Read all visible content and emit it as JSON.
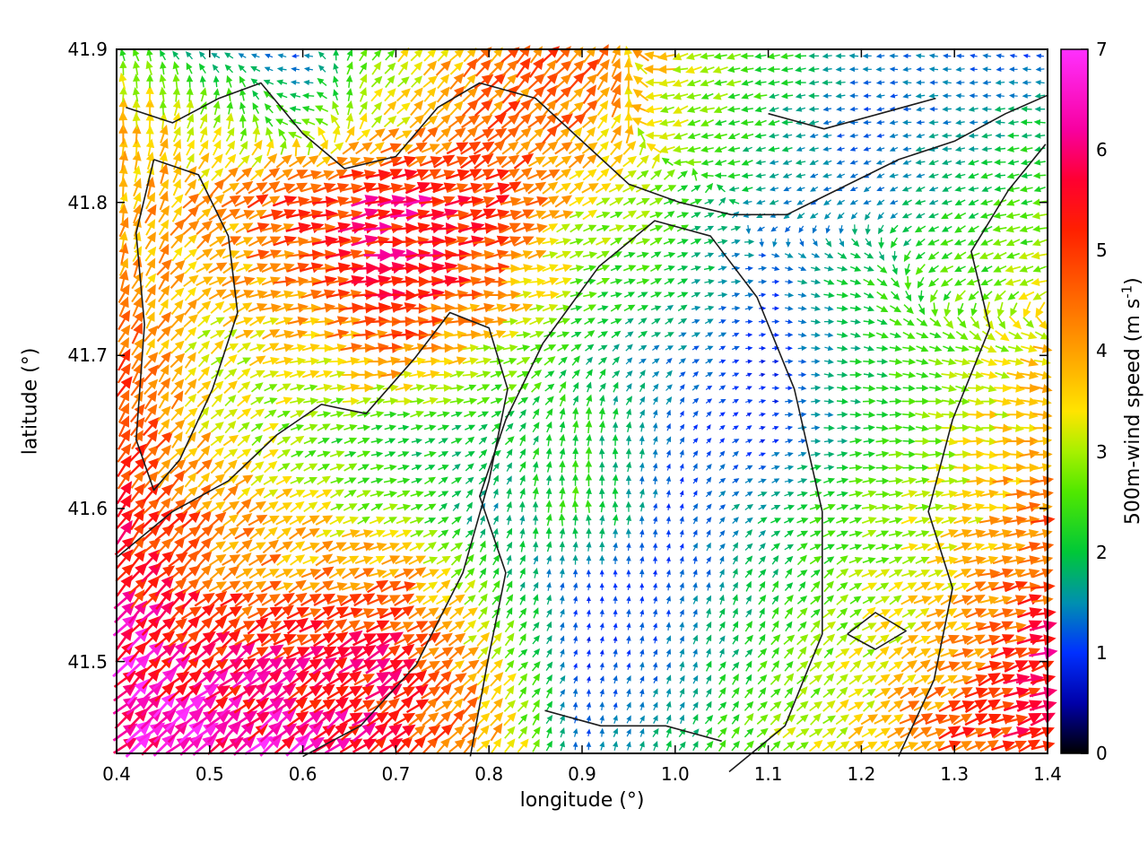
{
  "chart_data": {
    "type": "quiver",
    "title": "",
    "xlabel": "longitude (°)",
    "ylabel": "latitude (°)",
    "xlim": [
      0.4,
      1.4
    ],
    "ylim": [
      41.44,
      41.9
    ],
    "x_ticks": [
      0.4,
      0.5,
      0.6,
      0.7,
      0.8,
      0.9,
      1.0,
      1.1,
      1.2,
      1.3,
      1.4
    ],
    "x_tick_labels": [
      "0.4",
      "0.5",
      "0.6",
      "0.7",
      "0.8",
      "0.9",
      "1.0",
      "1.1",
      "1.2",
      "1.3",
      "1.4"
    ],
    "y_ticks": [
      41.5,
      41.6,
      41.7,
      41.8,
      41.9
    ],
    "y_tick_labels": [
      "41.5",
      "41.6",
      "41.7",
      "41.8",
      "41.9"
    ],
    "grid": false,
    "legend": "none",
    "colorbar": {
      "label": "500m-wind speed (m s^-1)",
      "label_main": "500m-wind speed (m s",
      "label_sup": "-1",
      "label_close": ")",
      "range": [
        0,
        7
      ],
      "ticks": [
        0,
        1,
        2,
        3,
        4,
        5,
        6,
        7
      ],
      "tick_labels": [
        "0",
        "1",
        "2",
        "3",
        "4",
        "5",
        "6",
        "7"
      ],
      "position": "right"
    },
    "colormap": [
      {
        "v": 0,
        "c": "#000000"
      },
      {
        "v": 0.5,
        "c": "#0000a8"
      },
      {
        "v": 1.0,
        "c": "#0030ff"
      },
      {
        "v": 1.5,
        "c": "#0090b0"
      },
      {
        "v": 2.0,
        "c": "#00c838"
      },
      {
        "v": 2.6,
        "c": "#50e800"
      },
      {
        "v": 3.0,
        "c": "#a8f000"
      },
      {
        "v": 3.4,
        "c": "#ffe400"
      },
      {
        "v": 4.0,
        "c": "#ffa000"
      },
      {
        "v": 4.6,
        "c": "#ff6000"
      },
      {
        "v": 5.2,
        "c": "#ff2000"
      },
      {
        "v": 5.7,
        "c": "#ff0030"
      },
      {
        "v": 6.2,
        "c": "#f800a0"
      },
      {
        "v": 7,
        "c": "#ff30ff"
      }
    ],
    "grid_lons": [
      0.4,
      0.5,
      0.6,
      0.7,
      0.8,
      0.9,
      1.0,
      1.1,
      1.2,
      1.3,
      1.4
    ],
    "grid_lats": [
      41.45,
      41.5,
      41.55,
      41.6,
      41.65,
      41.7,
      41.75,
      41.8,
      41.85,
      41.9
    ],
    "speed_m_s": [
      [
        6.9,
        6.4,
        6.0,
        5.2,
        4.0,
        1.2,
        1.8,
        2.8,
        3.5,
        4.8,
        5.4
      ],
      [
        6.4,
        5.6,
        5.6,
        5.4,
        3.4,
        0.9,
        1.4,
        2.4,
        3.2,
        4.2,
        5.6
      ],
      [
        5.6,
        4.6,
        4.2,
        4.6,
        2.4,
        1.0,
        1.1,
        2.0,
        2.9,
        3.6,
        5.0
      ],
      [
        5.2,
        4.2,
        3.4,
        2.6,
        1.5,
        2.4,
        1.0,
        1.8,
        2.6,
        3.3,
        4.6
      ],
      [
        5.0,
        3.6,
        2.6,
        2.0,
        2.0,
        2.2,
        1.2,
        0.9,
        2.1,
        3.0,
        4.0
      ],
      [
        4.6,
        3.2,
        3.4,
        4.4,
        3.0,
        2.0,
        1.4,
        0.9,
        2.0,
        2.8,
        3.6
      ],
      [
        4.2,
        3.6,
        4.6,
        5.6,
        4.6,
        2.6,
        2.0,
        1.1,
        2.2,
        2.5,
        3.0
      ],
      [
        3.8,
        4.0,
        5.0,
        5.8,
        5.0,
        3.4,
        2.4,
        1.5,
        1.3,
        2.0,
        2.6
      ],
      [
        4.0,
        3.0,
        2.4,
        3.6,
        4.6,
        4.2,
        3.0,
        2.0,
        1.1,
        1.5,
        2.0
      ],
      [
        2.6,
        1.6,
        1.1,
        3.0,
        4.4,
        4.6,
        3.4,
        2.4,
        1.5,
        1.2,
        1.1
      ]
    ],
    "direction_deg": [
      [
        42,
        40,
        36,
        38,
        50,
        85,
        60,
        45,
        35,
        25,
        20
      ],
      [
        45,
        38,
        32,
        32,
        45,
        80,
        70,
        52,
        40,
        26,
        16
      ],
      [
        48,
        38,
        26,
        22,
        60,
        88,
        80,
        60,
        32,
        22,
        12
      ],
      [
        52,
        42,
        30,
        20,
        70,
        90,
        75,
        25,
        12,
        8,
        6
      ],
      [
        58,
        46,
        22,
        12,
        35,
        90,
        65,
        15,
        2,
        356,
        2
      ],
      [
        62,
        42,
        12,
        6,
        12,
        42,
        35,
        5,
        352,
        344,
        348
      ],
      [
        72,
        32,
        10,
        6,
        6,
        16,
        22,
        2,
        342,
        210,
        195
      ],
      [
        82,
        42,
        16,
        10,
        20,
        30,
        28,
        200,
        212,
        202,
        192
      ],
      [
        92,
        62,
        172,
        42,
        42,
        46,
        202,
        192,
        192,
        186,
        182
      ],
      [
        102,
        152,
        182,
        50,
        46,
        52,
        192,
        186,
        182,
        176,
        172
      ]
    ],
    "contours": [
      [
        [
          0.41,
          41.862
        ],
        [
          0.46,
          41.852
        ],
        [
          0.51,
          41.868
        ],
        [
          0.555,
          41.878
        ],
        [
          0.6,
          41.845
        ],
        [
          0.645,
          41.822
        ],
        [
          0.7,
          41.83
        ],
        [
          0.745,
          41.862
        ],
        [
          0.79,
          41.878
        ],
        [
          0.85,
          41.868
        ],
        [
          0.9,
          41.84
        ],
        [
          0.95,
          41.812
        ],
        [
          1.005,
          41.8
        ],
        [
          1.06,
          41.792
        ],
        [
          1.12,
          41.792
        ],
        [
          1.18,
          41.81
        ],
        [
          1.24,
          41.828
        ],
        [
          1.3,
          41.84
        ],
        [
          1.355,
          41.858
        ],
        [
          1.4,
          41.87
        ]
      ],
      [
        [
          0.44,
          41.828
        ],
        [
          0.488,
          41.818
        ],
        [
          0.52,
          41.778
        ],
        [
          0.53,
          41.728
        ],
        [
          0.503,
          41.678
        ],
        [
          0.468,
          41.632
        ],
        [
          0.44,
          41.612
        ],
        [
          0.421,
          41.645
        ],
        [
          0.43,
          41.72
        ],
        [
          0.421,
          41.78
        ],
        [
          0.44,
          41.828
        ]
      ],
      [
        [
          0.4,
          41.568
        ],
        [
          0.46,
          41.598
        ],
        [
          0.52,
          41.618
        ],
        [
          0.572,
          41.648
        ],
        [
          0.62,
          41.668
        ],
        [
          0.668,
          41.662
        ],
        [
          0.72,
          41.698
        ],
        [
          0.758,
          41.728
        ],
        [
          0.8,
          41.718
        ],
        [
          0.82,
          41.678
        ],
        [
          0.8,
          41.618
        ],
        [
          0.772,
          41.558
        ],
        [
          0.722,
          41.498
        ],
        [
          0.662,
          41.458
        ],
        [
          0.6,
          41.438
        ]
      ],
      [
        [
          0.78,
          41.438
        ],
        [
          0.798,
          41.498
        ],
        [
          0.818,
          41.558
        ],
        [
          0.79,
          41.608
        ],
        [
          0.818,
          41.658
        ],
        [
          0.858,
          41.708
        ],
        [
          0.918,
          41.758
        ],
        [
          0.978,
          41.788
        ],
        [
          1.038,
          41.778
        ],
        [
          1.088,
          41.738
        ],
        [
          1.128,
          41.678
        ],
        [
          1.158,
          41.598
        ],
        [
          1.158,
          41.518
        ],
        [
          1.118,
          41.458
        ],
        [
          1.058,
          41.428
        ]
      ],
      [
        [
          1.24,
          41.438
        ],
        [
          1.278,
          41.488
        ],
        [
          1.298,
          41.548
        ],
        [
          1.272,
          41.598
        ],
        [
          1.298,
          41.658
        ],
        [
          1.338,
          41.718
        ],
        [
          1.318,
          41.768
        ],
        [
          1.358,
          41.808
        ],
        [
          1.398,
          41.838
        ]
      ],
      [
        [
          1.1,
          41.858
        ],
        [
          1.16,
          41.848
        ],
        [
          1.22,
          41.858
        ],
        [
          1.28,
          41.868
        ]
      ],
      [
        [
          0.86,
          41.468
        ],
        [
          0.92,
          41.458
        ],
        [
          0.99,
          41.458
        ],
        [
          1.05,
          41.448
        ]
      ],
      [
        [
          1.185,
          41.518
        ],
        [
          1.215,
          41.532
        ],
        [
          1.248,
          41.52
        ],
        [
          1.215,
          41.508
        ],
        [
          1.185,
          41.518
        ]
      ]
    ]
  }
}
